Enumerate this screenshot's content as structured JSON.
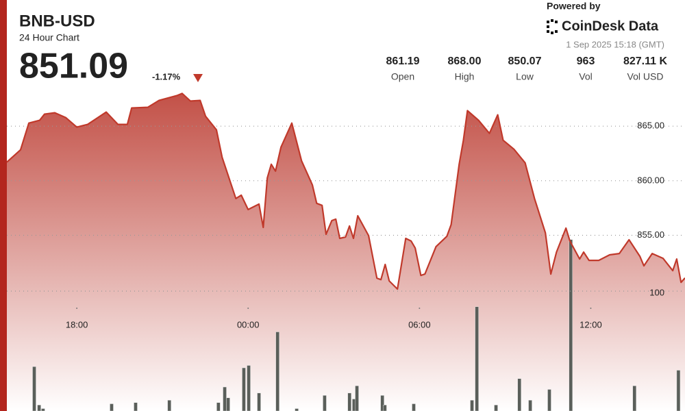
{
  "header": {
    "title": "BNB-USD",
    "subtitle": "24 Hour Chart",
    "price": "851.09",
    "change": "-1.17%",
    "powered_by": "Powered by",
    "brand": "CoinDesk Data",
    "timestamp": "1 Sep 2025 15:18 (GMT)",
    "stats": [
      {
        "value": "861.19",
        "label": "Open"
      },
      {
        "value": "868.00",
        "label": "High"
      },
      {
        "value": "850.07",
        "label": "Low"
      },
      {
        "value": "963",
        "label": "Vol"
      },
      {
        "value": "827.11 K",
        "label": "Vol USD"
      }
    ]
  },
  "chart_data": {
    "type": "line",
    "color": "#c0392b",
    "xlim": [
      0.55,
      24.3
    ],
    "ylim": [
      838.9,
      868.4
    ],
    "y2lim": [
      0,
      268.6
    ],
    "xticks": [
      {
        "value": 3,
        "label": "18:00"
      },
      {
        "value": 9,
        "label": "00:00"
      },
      {
        "value": 15,
        "label": "06:00"
      },
      {
        "value": 21,
        "label": "12:00"
      }
    ],
    "yticks": [
      {
        "value": 855,
        "label": "855.00"
      },
      {
        "value": 860,
        "label": "860.00"
      },
      {
        "value": 865,
        "label": "865.00"
      }
    ],
    "y2ticks": [
      100
    ],
    "grid": true,
    "series": [
      {
        "type": "line",
        "color": "#c0392b",
        "x": [
          0.55,
          1.03,
          1.32,
          1.7,
          1.87,
          2.23,
          2.61,
          3.0,
          3.38,
          4.03,
          4.44,
          4.77,
          4.92,
          5.49,
          5.88,
          6.5,
          6.69,
          6.98,
          7.32,
          7.51,
          7.89,
          8.09,
          8.57,
          8.76,
          9.0,
          9.38,
          9.53,
          9.67,
          9.81,
          9.96,
          10.15,
          10.53,
          10.87,
          11.25,
          11.4,
          11.59,
          11.73,
          11.93,
          12.07,
          12.21,
          12.41,
          12.55,
          12.69,
          12.84,
          13.22,
          13.51,
          13.65,
          13.8,
          13.94,
          14.23,
          14.52,
          14.71,
          14.85,
          15.05,
          15.19,
          15.58,
          15.96,
          16.11,
          16.39,
          16.54,
          16.68,
          17.07,
          17.45,
          17.74,
          17.93,
          18.31,
          18.7,
          19.03,
          19.41,
          19.6,
          19.8,
          20.13,
          20.27,
          20.61,
          20.75,
          20.94,
          21.28,
          21.66,
          22.0,
          22.34,
          22.72,
          22.86,
          23.15,
          23.53,
          23.87,
          24.01,
          24.16,
          24.3
        ],
        "values": [
          861.7,
          862.83,
          865.28,
          865.54,
          866.1,
          866.23,
          865.79,
          864.91,
          865.16,
          866.29,
          865.16,
          865.16,
          866.67,
          866.73,
          867.36,
          867.8,
          868.0,
          867.3,
          867.36,
          865.91,
          864.66,
          862.14,
          858.37,
          858.68,
          857.36,
          857.86,
          855.72,
          860.25,
          861.51,
          860.88,
          863.08,
          865.28,
          861.83,
          859.62,
          857.93,
          857.74,
          855.09,
          856.35,
          856.48,
          854.72,
          854.84,
          855.85,
          854.72,
          856.79,
          854.97,
          851.07,
          850.94,
          852.33,
          850.82,
          850.07,
          854.72,
          854.47,
          853.84,
          851.32,
          851.45,
          853.96,
          854.91,
          855.98,
          861.51,
          863.71,
          866.42,
          865.54,
          864.34,
          866.04,
          863.71,
          862.89,
          861.64,
          858.37,
          855.22,
          851.45,
          853.46,
          855.66,
          854.47,
          852.83,
          853.46,
          852.7,
          852.7,
          853.21,
          853.33,
          854.59,
          853.08,
          852.2,
          853.33,
          852.89,
          851.76,
          852.83,
          850.69,
          851.09
        ]
      },
      {
        "type": "bar",
        "axis": "y2",
        "color": "#5a5f5a",
        "x": [
          1.51,
          1.68,
          1.82,
          4.22,
          5.06,
          6.24,
          7.96,
          8.18,
          8.3,
          8.85,
          9.02,
          9.38,
          10.03,
          10.7,
          11.68,
          12.55,
          12.71,
          12.81,
          13.7,
          13.79,
          14.8,
          16.84,
          17.01,
          17.68,
          18.5,
          18.88,
          19.55,
          20.3,
          22.53,
          24.07
        ],
        "values": [
          37,
          5,
          2,
          6,
          7,
          9,
          7,
          20,
          11,
          36,
          38,
          15,
          66,
          2,
          13,
          15,
          10,
          21,
          13,
          5,
          6,
          9,
          87,
          5,
          27,
          9,
          18,
          143,
          21,
          34
        ]
      }
    ]
  }
}
